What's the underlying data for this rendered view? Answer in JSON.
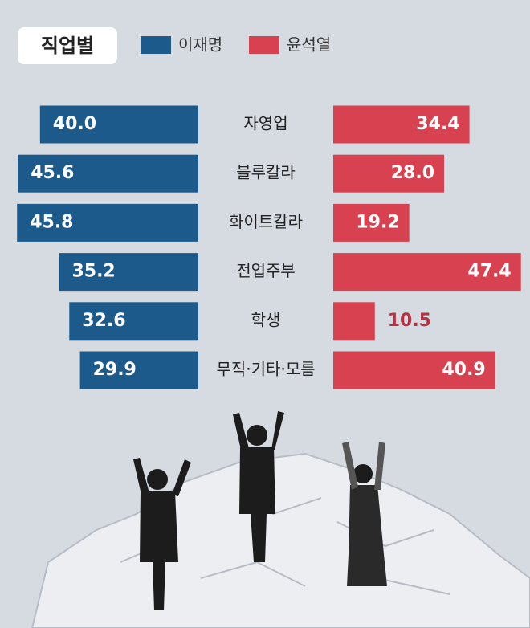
{
  "chart_data": {
    "type": "butterfly-bar",
    "title": "직업별",
    "categories": [
      "자영업",
      "블루칼라",
      "화이트칼라",
      "전업주부",
      "학생",
      "무직·기타·모름"
    ],
    "series": [
      {
        "name": "이재명",
        "color": "#1d5a8c",
        "values": [
          40.0,
          45.6,
          45.8,
          35.2,
          32.6,
          29.9
        ],
        "value_labels": [
          "40.0",
          "45.6",
          "45.8",
          "35.2",
          "32.6",
          "29.9"
        ]
      },
      {
        "name": "윤석열",
        "color": "#d8414f",
        "values": [
          34.4,
          28.0,
          19.2,
          47.4,
          10.5,
          40.9
        ],
        "value_labels": [
          "34.4",
          "28.0",
          "19.2",
          "47.4",
          "10.5",
          "40.9"
        ]
      }
    ]
  }
}
